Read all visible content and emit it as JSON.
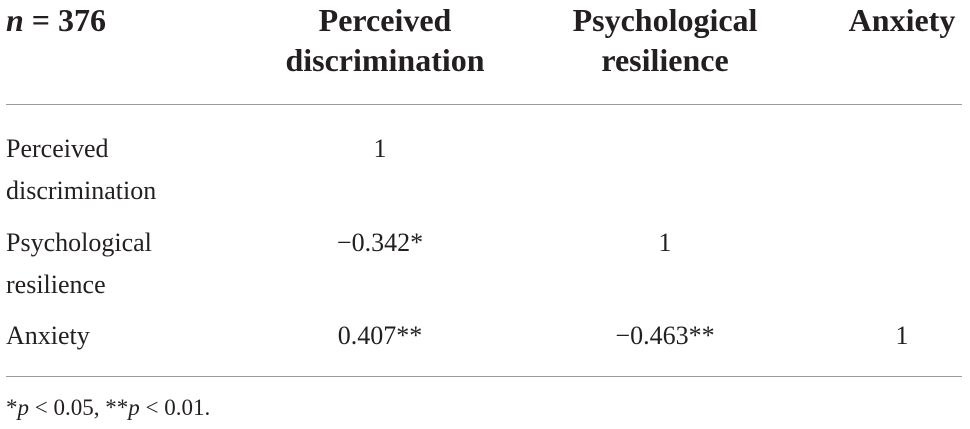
{
  "header": {
    "n_var": "n",
    "n_rest": " = 376",
    "col1_line1": "Perceived",
    "col1_line2": "discrimination",
    "col2_line1": "Psychological",
    "col2_line2": "resilience",
    "col3_line1": "Anxiety"
  },
  "rows": [
    {
      "label_line1": "Perceived",
      "label_line2": "discrimination",
      "values": [
        "1",
        "",
        ""
      ]
    },
    {
      "label_line1": "Psychological",
      "label_line2": "resilience",
      "values": [
        "−0.342*",
        "1",
        ""
      ]
    },
    {
      "label_line1": "Anxiety",
      "label_line2": "",
      "values": [
        "0.407**",
        "−0.463**",
        "1"
      ]
    }
  ],
  "footnote": {
    "star1": "*",
    "p1": "p",
    "rest1": " < 0.05, ",
    "star2": "**",
    "p2": "p",
    "rest2": " < 0.01."
  }
}
